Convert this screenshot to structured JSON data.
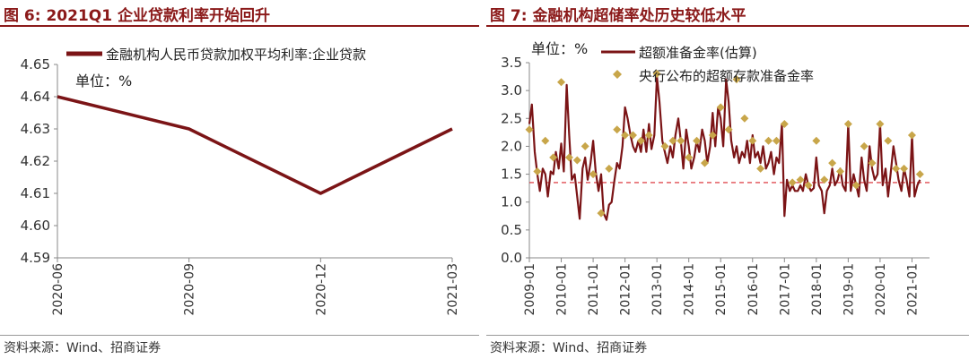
{
  "left": {
    "title": "图 6:  2021Q1 企业贷款利率开始回升",
    "source": "资料来源：Wind、招商证券",
    "chart_data": {
      "type": "line",
      "title": "",
      "unit_label": "单位：%",
      "categories": [
        "2020-06",
        "2020-09",
        "2020-12",
        "2021-03"
      ],
      "series": [
        {
          "name": "金融机构人民币贷款加权平均利率:企业贷款",
          "values": [
            4.64,
            4.63,
            4.61,
            4.63
          ],
          "color": "#7b1416"
        }
      ],
      "ylim": [
        4.59,
        4.65
      ],
      "yticks": [
        "4.59",
        "4.60",
        "4.61",
        "4.62",
        "4.63",
        "4.64",
        "4.65"
      ],
      "xlabel": "",
      "ylabel": "",
      "legend": "top"
    }
  },
  "right": {
    "title": "图 7:  金融机构超储率处历史较低水平",
    "source": "资料来源：Wind、招商证券",
    "chart_data": {
      "type": "line",
      "title": "",
      "unit_label": "单位：%",
      "categories": [
        "2009-01",
        "2010-01",
        "2011-01",
        "2012-01",
        "2013-01",
        "2014-01",
        "2015-01",
        "2016-01",
        "2017-01",
        "2018-01",
        "2019-01",
        "2020-01",
        "2021-01"
      ],
      "ylim": [
        0.0,
        3.5
      ],
      "yticks": [
        "0.0",
        "0.5",
        "1.0",
        "1.5",
        "2.0",
        "2.5",
        "3.0",
        "3.5"
      ],
      "reference_line": {
        "value": 1.35,
        "color": "#d9262c",
        "style": "dashed"
      },
      "series": [
        {
          "name": "超额准备金率(估算)",
          "type": "line",
          "color": "#7b1416",
          "x": [
            2009.0,
            2009.08,
            2009.17,
            2009.25,
            2009.33,
            2009.42,
            2009.5,
            2009.58,
            2009.67,
            2009.75,
            2009.83,
            2009.92,
            2010.0,
            2010.08,
            2010.17,
            2010.25,
            2010.33,
            2010.42,
            2010.5,
            2010.58,
            2010.67,
            2010.75,
            2010.83,
            2010.92,
            2011.0,
            2011.08,
            2011.17,
            2011.25,
            2011.33,
            2011.42,
            2011.5,
            2011.58,
            2011.67,
            2011.75,
            2011.83,
            2011.92,
            2012.0,
            2012.08,
            2012.17,
            2012.25,
            2012.33,
            2012.42,
            2012.5,
            2012.58,
            2012.67,
            2012.75,
            2012.83,
            2012.92,
            2013.0,
            2013.08,
            2013.17,
            2013.25,
            2013.33,
            2013.42,
            2013.5,
            2013.58,
            2013.67,
            2013.75,
            2013.83,
            2013.92,
            2014.0,
            2014.08,
            2014.17,
            2014.25,
            2014.33,
            2014.42,
            2014.5,
            2014.58,
            2014.67,
            2014.75,
            2014.83,
            2014.92,
            2015.0,
            2015.08,
            2015.17,
            2015.25,
            2015.33,
            2015.42,
            2015.5,
            2015.58,
            2015.67,
            2015.75,
            2015.83,
            2015.92,
            2016.0,
            2016.08,
            2016.17,
            2016.25,
            2016.33,
            2016.42,
            2016.5,
            2016.58,
            2016.67,
            2016.75,
            2016.83,
            2016.92,
            2017.0,
            2017.08,
            2017.17,
            2017.25,
            2017.33,
            2017.42,
            2017.5,
            2017.58,
            2017.67,
            2017.75,
            2017.83,
            2017.92,
            2018.0,
            2018.08,
            2018.17,
            2018.25,
            2018.33,
            2018.42,
            2018.5,
            2018.58,
            2018.67,
            2018.75,
            2018.83,
            2018.92,
            2019.0,
            2019.08,
            2019.17,
            2019.25,
            2019.33,
            2019.42,
            2019.5,
            2019.58,
            2019.67,
            2019.75,
            2019.83,
            2019.92,
            2020.0,
            2020.08,
            2020.17,
            2020.25,
            2020.33,
            2020.42,
            2020.5,
            2020.58,
            2020.67,
            2020.75,
            2020.83,
            2020.92,
            2021.0,
            2021.08,
            2021.17,
            2021.25
          ],
          "values": [
            2.4,
            2.75,
            1.9,
            1.5,
            1.2,
            1.6,
            1.5,
            1.1,
            1.55,
            1.5,
            1.9,
            1.6,
            2.05,
            1.55,
            3.1,
            2.2,
            1.4,
            1.5,
            1.1,
            0.7,
            1.6,
            1.8,
            1.4,
            1.7,
            2.1,
            1.55,
            1.2,
            1.5,
            0.8,
            0.68,
            0.95,
            1.0,
            1.4,
            1.7,
            1.6,
            2.0,
            2.7,
            2.5,
            2.2,
            2.0,
            1.9,
            2.1,
            1.9,
            2.3,
            1.9,
            2.4,
            1.95,
            2.2,
            3.25,
            2.8,
            2.1,
            1.9,
            1.7,
            2.0,
            1.8,
            2.2,
            2.5,
            2.1,
            1.6,
            2.3,
            2.0,
            1.6,
            1.8,
            2.1,
            1.9,
            2.3,
            2.1,
            1.7,
            2.0,
            2.6,
            2.0,
            2.7,
            2.5,
            2.0,
            3.2,
            2.8,
            2.1,
            1.8,
            2.0,
            1.7,
            1.9,
            1.8,
            2.1,
            1.7,
            2.2,
            1.8,
            1.9,
            1.7,
            2.0,
            1.6,
            1.7,
            1.9,
            1.5,
            1.8,
            1.7,
            2.4,
            0.75,
            1.4,
            1.2,
            1.3,
            1.2,
            1.2,
            1.3,
            1.2,
            1.5,
            1.3,
            1.2,
            1.25,
            1.8,
            1.3,
            1.2,
            0.8,
            1.2,
            1.3,
            1.6,
            1.3,
            1.4,
            1.6,
            1.3,
            1.2,
            2.4,
            1.2,
            1.5,
            1.3,
            1.1,
            1.8,
            1.4,
            1.2,
            2.0,
            1.6,
            1.4,
            1.5,
            2.4,
            1.3,
            1.6,
            1.1,
            1.5,
            2.0,
            1.7,
            1.4,
            1.2,
            1.6,
            1.4,
            1.1,
            2.2,
            1.1,
            1.3,
            1.4
          ]
        },
        {
          "name": "央行公布的超额存款准备金率",
          "type": "scatter",
          "color": "#c8a64a",
          "x": [
            2009.0,
            2009.25,
            2009.5,
            2009.75,
            2010.0,
            2010.25,
            2010.5,
            2010.75,
            2011.0,
            2011.25,
            2011.5,
            2011.75,
            2012.0,
            2012.25,
            2012.5,
            2012.75,
            2013.0,
            2013.25,
            2013.5,
            2013.75,
            2014.0,
            2014.25,
            2014.5,
            2014.75,
            2015.0,
            2015.25,
            2015.5,
            2015.75,
            2016.0,
            2016.25,
            2016.5,
            2016.75,
            2017.0,
            2017.25,
            2017.5,
            2017.75,
            2018.0,
            2018.25,
            2018.5,
            2018.75,
            2019.0,
            2019.25,
            2019.5,
            2019.75,
            2020.0,
            2020.25,
            2020.5,
            2020.75,
            2021.0,
            2021.25
          ],
          "values": [
            2.3,
            1.55,
            2.1,
            1.8,
            3.15,
            1.8,
            1.75,
            2.0,
            1.5,
            0.8,
            1.6,
            2.3,
            2.2,
            2.2,
            2.1,
            2.2,
            3.3,
            2.0,
            2.1,
            2.1,
            1.8,
            2.1,
            1.7,
            2.2,
            2.7,
            2.3,
            3.2,
            2.5,
            2.1,
            1.6,
            2.1,
            2.1,
            2.4,
            1.35,
            1.4,
            1.3,
            2.1,
            1.4,
            1.7,
            1.55,
            2.4,
            1.3,
            2.0,
            1.7,
            2.4,
            2.1,
            1.6,
            1.6,
            2.2,
            1.5
          ]
        }
      ],
      "xlabel": "",
      "ylabel": "",
      "legend": "top"
    }
  }
}
